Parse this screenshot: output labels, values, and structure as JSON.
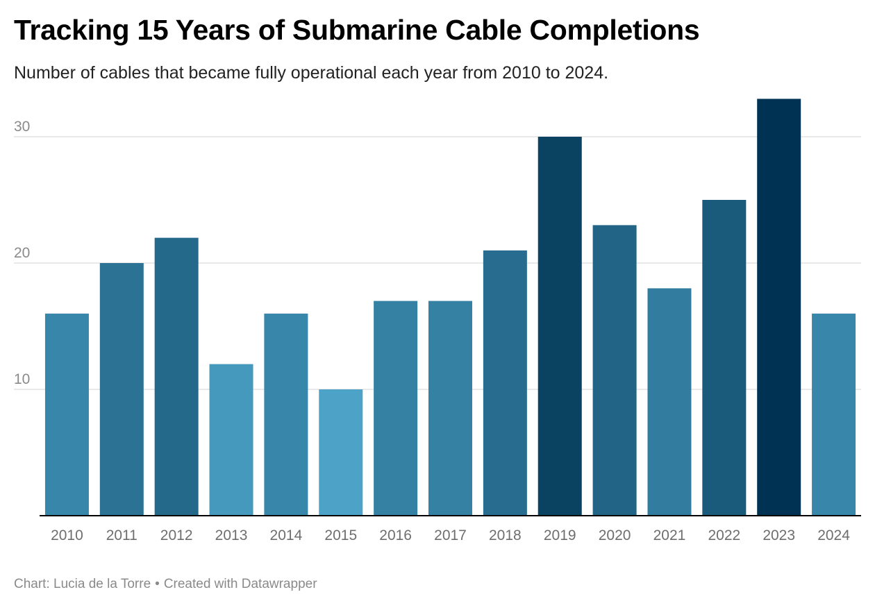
{
  "header": {
    "title": "Tracking 15 Years of Submarine Cable Completions",
    "subtitle": "Number of cables that became fully operational each year from 2010 to 2024."
  },
  "footer": {
    "credit": "Chart: Lucia de la Torre",
    "separator": "•",
    "created_with": "Created with Datawrapper"
  },
  "colors": {
    "gridline": "#e2e2e2",
    "baseline": "#000000",
    "tick_label": "#8a8a8a",
    "category_label": "#6e6e6e",
    "scale_light": "#4ca3c7",
    "scale_dark": "#003353"
  },
  "chart_data": {
    "type": "bar",
    "title": "Tracking 15 Years of Submarine Cable Completions",
    "subtitle": "Number of cables that became fully operational each year from 2010 to 2024.",
    "xlabel": "",
    "ylabel": "",
    "categories": [
      "2010",
      "2011",
      "2012",
      "2013",
      "2014",
      "2015",
      "2016",
      "2017",
      "2018",
      "2019",
      "2020",
      "2021",
      "2022",
      "2023",
      "2024"
    ],
    "values": [
      16,
      20,
      22,
      12,
      16,
      10,
      17,
      17,
      21,
      30,
      23,
      18,
      25,
      33,
      16
    ],
    "ylim": [
      0,
      33
    ],
    "yticks": [
      10,
      20,
      30
    ],
    "grid": true,
    "legend": "none",
    "color_scale": "value-based sequential blue (light for low values, dark for high values)"
  }
}
